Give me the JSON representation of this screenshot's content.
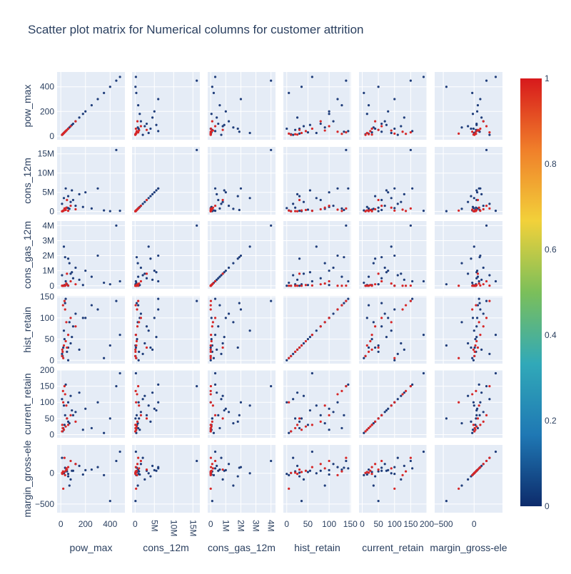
{
  "title": "Scatter plot matrix for Numerical columns for customer attrition",
  "colors": {
    "panel_bg": "#E5ECF6",
    "grid": "#ffffff",
    "churn_0": "#1f3d7a",
    "churn_1": "#d62728",
    "colorscale": [
      "#0d2b6b",
      "#1f78b4",
      "#31a9b8",
      "#7bbf5a",
      "#f2d13a",
      "#f07f2a",
      "#d7191c"
    ]
  },
  "chart_data": {
    "type": "scatter",
    "title": "Scatter plot matrix for Numerical columns for customer attrition",
    "variables": [
      "pow_max",
      "cons_12m",
      "cons_gas_12m",
      "hist_retain",
      "current_retain",
      "margin_gross-ele"
    ],
    "axes": {
      "pow_max": {
        "range": [
          -30,
          520
        ],
        "ticks": [
          0,
          200,
          400
        ],
        "tick_labels": [
          "0",
          "200",
          "400"
        ],
        "bottom_ticks": [
          0,
          200,
          400
        ],
        "bottom_tick_labels": [
          "0",
          "200",
          "400"
        ]
      },
      "cons_12m": {
        "range": [
          -800000,
          16800000
        ],
        "ticks": [
          0,
          5000000,
          10000000,
          15000000
        ],
        "tick_labels": [
          "0",
          "5M",
          "10M",
          "15M"
        ],
        "bottom_ticks": [
          0,
          5000000,
          10000000,
          15000000
        ],
        "bottom_tick_labels": [
          "0",
          "5M",
          "10M",
          "15M"
        ]
      },
      "cons_gas_12m": {
        "range": [
          -200000,
          4300000
        ],
        "ticks": [
          0,
          1000000,
          2000000,
          3000000,
          4000000
        ],
        "tick_labels": [
          "0",
          "1M",
          "2M",
          "3M",
          "4M"
        ],
        "bottom_ticks": [
          0,
          1000000,
          2000000,
          3000000,
          4000000
        ],
        "bottom_tick_labels": [
          "0",
          "1M",
          "2M",
          "3M",
          "4M"
        ]
      },
      "hist_retain": {
        "range": [
          -8,
          152
        ],
        "ticks": [
          0,
          50,
          100,
          150
        ],
        "tick_labels": [
          "0",
          "50",
          "100",
          "150"
        ],
        "bottom_ticks": [
          0,
          50,
          100,
          150
        ],
        "bottom_tick_labels": [
          "0",
          "50",
          "100",
          "150"
        ]
      },
      "current_retain": {
        "range": [
          -10,
          200
        ],
        "ticks": [
          0,
          50,
          100,
          150,
          200
        ],
        "tick_labels": [
          "0",
          "50",
          "100",
          "150",
          "200"
        ],
        "bottom_ticks": [
          0,
          50,
          100,
          150,
          200
        ],
        "bottom_tick_labels": [
          "0",
          "50",
          "100",
          "150",
          "200"
        ]
      },
      "margin_gross-ele": {
        "range": [
          -640,
          460
        ],
        "ticks": [
          -500,
          0
        ],
        "tick_labels": [
          "−500",
          "0"
        ],
        "bottom_ticks": [
          -500,
          0
        ],
        "bottom_tick_labels": [
          "−500",
          "0"
        ]
      }
    },
    "color_variable": "churn",
    "colorbar": {
      "range": [
        0,
        1
      ],
      "ticks": [
        0,
        0.2,
        0.4,
        0.6,
        0.8,
        1
      ],
      "tick_labels": [
        "0",
        "0.2",
        "0.4",
        "0.6",
        "0.8",
        "1"
      ]
    },
    "series": [
      {
        "color_value": 0,
        "points": [
          [
            20,
            200000,
            0,
            30,
            20,
            10
          ],
          [
            30,
            500000,
            50000,
            50,
            30,
            20
          ],
          [
            15,
            100000,
            0,
            10,
            10,
            5
          ],
          [
            50,
            1000000,
            100000,
            20,
            50,
            30
          ],
          [
            100,
            3000000,
            500000,
            80,
            60,
            40
          ],
          [
            200,
            5000000,
            1000000,
            100,
            80,
            50
          ],
          [
            300,
            6000000,
            2000000,
            120,
            100,
            100
          ],
          [
            450,
            16000000,
            4000000,
            140,
            150,
            200
          ],
          [
            480,
            200000,
            300000,
            60,
            190,
            350
          ],
          [
            60,
            4000000,
            1800000,
            30,
            40,
            -50
          ],
          [
            80,
            2500000,
            800000,
            40,
            120,
            -100
          ],
          [
            120,
            1500000,
            1200000,
            110,
            70,
            150
          ],
          [
            250,
            800000,
            600000,
            130,
            20,
            60
          ],
          [
            350,
            300000,
            200000,
            5,
            5,
            -30
          ],
          [
            40,
            6000000,
            300000,
            145,
            155,
            80
          ],
          [
            25,
            3500000,
            2600000,
            70,
            90,
            0
          ],
          [
            150,
            4500000,
            400000,
            25,
            130,
            120
          ],
          [
            70,
            700000,
            1500000,
            90,
            35,
            -200
          ],
          [
            10,
            2000000,
            700000,
            15,
            110,
            250
          ],
          [
            180,
            1200000,
            50000,
            100,
            15,
            -20
          ],
          [
            90,
            5500000,
            900000,
            55,
            75,
            40
          ],
          [
            35,
            400000,
            1900000,
            135,
            60,
            90
          ],
          [
            60,
            900000,
            0,
            0,
            100,
            -10
          ],
          [
            400,
            100000,
            100000,
            35,
            50,
            -450
          ]
        ]
      },
      {
        "color_value": 1,
        "points": [
          [
            15,
            100000,
            0,
            20,
            20,
            10
          ],
          [
            25,
            300000,
            0,
            35,
            15,
            20
          ],
          [
            10,
            50000,
            0,
            10,
            10,
            5
          ],
          [
            40,
            400000,
            50000,
            45,
            25,
            40
          ],
          [
            60,
            200000,
            20000,
            60,
            30,
            100
          ],
          [
            120,
            600000,
            100000,
            80,
            40,
            150
          ],
          [
            80,
            1500000,
            300000,
            100,
            60,
            200
          ],
          [
            30,
            800000,
            10000,
            140,
            150,
            250
          ],
          [
            20,
            250000,
            0,
            5,
            100,
            -250
          ],
          [
            50,
            3000000,
            800000,
            30,
            50,
            60
          ],
          [
            18,
            150000,
            0,
            130,
            135,
            30
          ],
          [
            35,
            500000,
            0,
            120,
            125,
            -30
          ],
          [
            45,
            1000000,
            150000,
            90,
            90,
            80
          ],
          [
            12,
            80000,
            0,
            25,
            30,
            -10
          ]
        ]
      }
    ]
  },
  "colorbar_labels": [
    "1",
    "0.8",
    "0.6",
    "0.4",
    "0.2",
    "0"
  ]
}
